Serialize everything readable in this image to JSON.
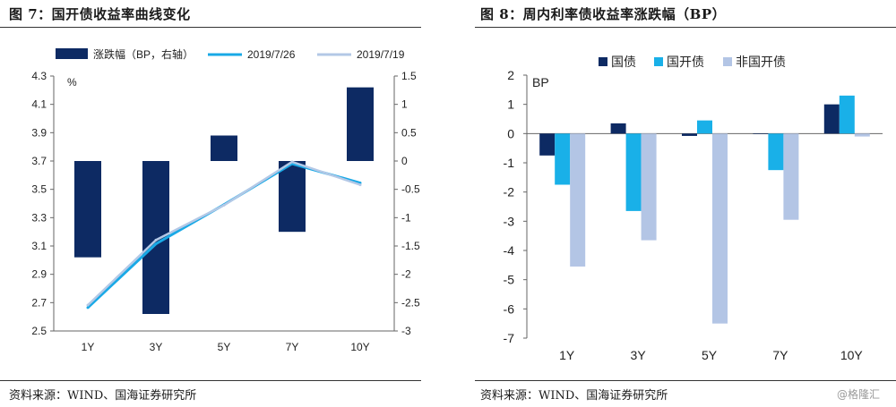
{
  "left_panel": {
    "title": "图 7：国开债收益率曲线变化",
    "source": "资料来源：WIND、国海证券研究所"
  },
  "right_panel": {
    "title": "图 8：周内利率债收益率涨跌幅（BP）",
    "source": "资料来源：WIND、国海证券研究所"
  },
  "watermark": "@格隆汇",
  "chart_data": [
    {
      "type": "bar+line",
      "title": "图 7：国开债收益率曲线变化",
      "categories": [
        "1Y",
        "3Y",
        "5Y",
        "7Y",
        "10Y"
      ],
      "y_left": {
        "label": "%",
        "ticks": [
          "4.3",
          "4.1",
          "3.9",
          "3.7",
          "3.5",
          "3.3",
          "3.1",
          "2.9",
          "2.7",
          "2.5"
        ],
        "range": [
          2.5,
          4.3
        ]
      },
      "y_right": {
        "ticks": [
          "1.5",
          "1",
          "0.5",
          "0",
          "-0.5",
          "-1",
          "-1.5",
          "-2",
          "-2.5",
          "-3"
        ],
        "range": [
          -3,
          1.5
        ]
      },
      "series": [
        {
          "name": "涨跌幅（BP，右轴）",
          "kind": "bar",
          "axis": "right",
          "color": "#0d2a63",
          "values": [
            -1.7,
            -2.7,
            0.45,
            -1.25,
            1.3
          ]
        },
        {
          "name": "2019/7/26",
          "kind": "line",
          "axis": "left",
          "color": "#19a9e6",
          "values": [
            2.665,
            3.115,
            3.392,
            3.681,
            3.545
          ]
        },
        {
          "name": "2019/7/19",
          "kind": "line",
          "axis": "left",
          "color": "#b3c8e6",
          "values": [
            2.682,
            3.142,
            3.388,
            3.694,
            3.532
          ]
        }
      ],
      "legend": "top"
    },
    {
      "type": "bar",
      "title": "图 8：周内利率债收益率涨跌幅（BP）",
      "ylabel": "BP",
      "categories": [
        "1Y",
        "3Y",
        "5Y",
        "7Y",
        "10Y"
      ],
      "y_ticks": [
        "2",
        "1",
        "0",
        "-1",
        "-2",
        "-3",
        "-4",
        "-5",
        "-6",
        "-7"
      ],
      "ylim": [
        -7,
        2
      ],
      "series": [
        {
          "name": "国债",
          "color": "#0d2a63",
          "values": [
            -0.75,
            0.35,
            -0.08,
            0.0,
            1.0
          ]
        },
        {
          "name": "国开债",
          "color": "#19b0e8",
          "values": [
            -1.75,
            -2.65,
            0.45,
            -1.25,
            1.3
          ]
        },
        {
          "name": "非国开债",
          "color": "#b3c5e5",
          "values": [
            -4.55,
            -3.65,
            -6.5,
            -2.95,
            -0.1
          ]
        }
      ],
      "legend": "top"
    }
  ]
}
